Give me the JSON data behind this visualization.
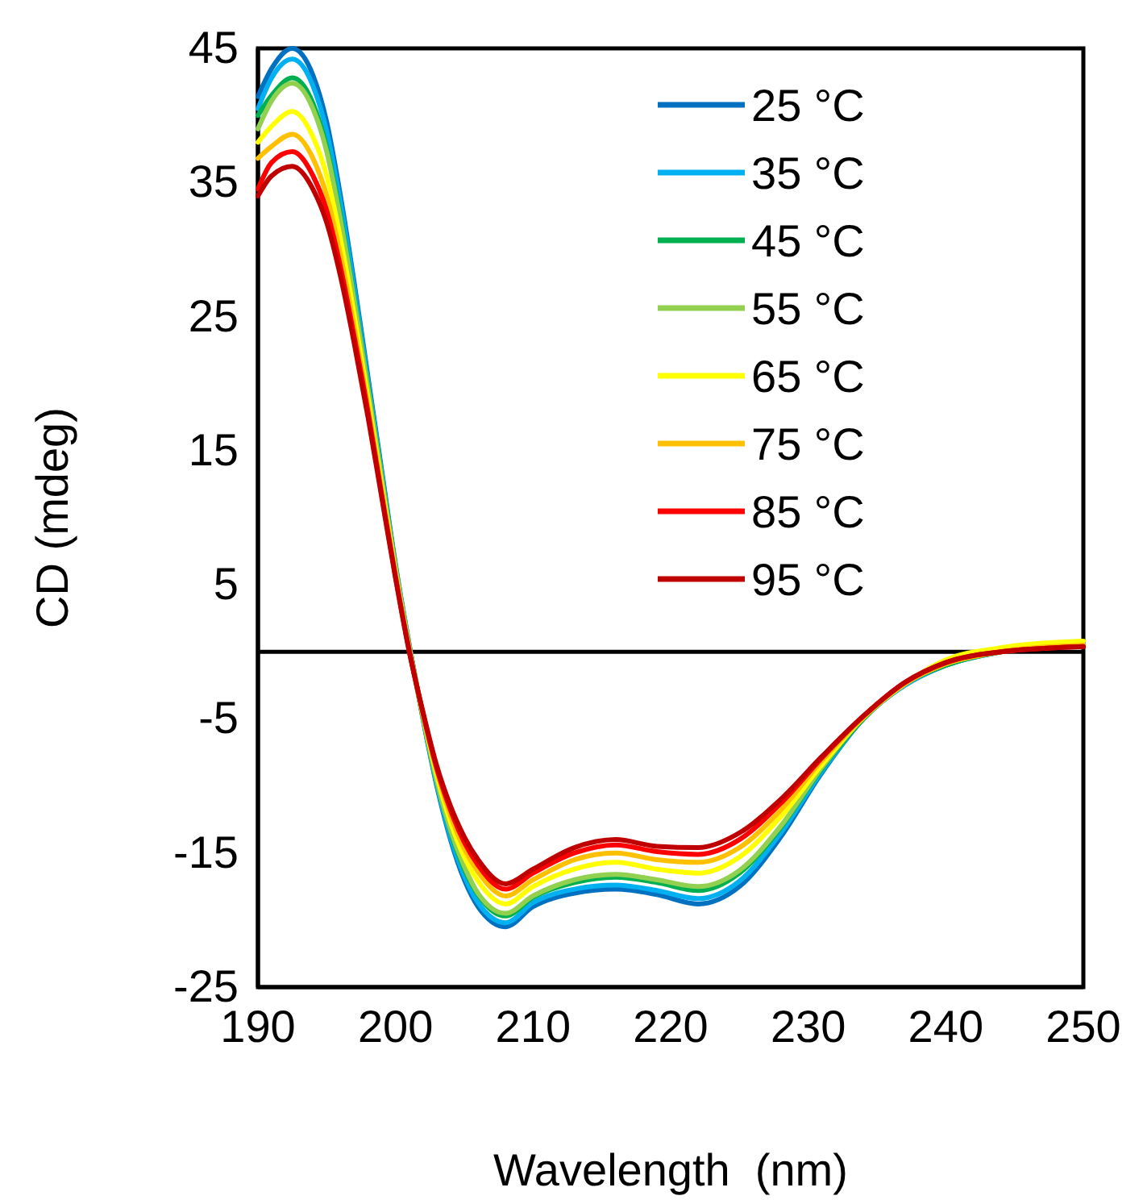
{
  "chart_data": {
    "type": "line",
    "xlabel": "Wavelength  (nm)",
    "ylabel": "CD (mdeg)",
    "x": [
      190,
      191,
      192.5,
      194,
      195,
      196,
      197,
      198,
      199,
      200,
      201,
      202,
      203,
      204,
      205,
      206,
      208,
      210,
      213,
      216,
      219,
      222,
      225,
      228,
      231,
      234,
      237,
      240,
      244,
      250
    ],
    "xlim": [
      190,
      250
    ],
    "xticks": [
      190,
      200,
      210,
      220,
      230,
      240,
      250
    ],
    "ylim": [
      -25,
      45
    ],
    "yticks": [
      -25,
      -15,
      -5,
      5,
      15,
      25,
      35,
      45
    ],
    "grid": false,
    "legend": "top right",
    "marker": "none",
    "line_style": "solid",
    "series": [
      {
        "name": "25 °C",
        "color": "#0070c0",
        "values": [
          41.4,
          43.5,
          45,
          43,
          39.5,
          34,
          27.5,
          20.5,
          13.5,
          6.5,
          0.5,
          -5,
          -10,
          -14,
          -17,
          -19,
          -20.5,
          -19,
          -18,
          -17.7,
          -18.1,
          -18.8,
          -17.5,
          -13.8,
          -9,
          -5,
          -2.5,
          -1,
          0,
          0.6
        ]
      },
      {
        "name": "35 °C",
        "color": "#00b0f0",
        "values": [
          40.5,
          42.8,
          44.2,
          42.2,
          38.8,
          33.5,
          27.1,
          20.2,
          13.3,
          6.4,
          0.5,
          -5,
          -9.9,
          -13.8,
          -16.7,
          -18.7,
          -20.2,
          -18.7,
          -17.7,
          -17.4,
          -17.8,
          -18.4,
          -17.1,
          -13.5,
          -8.9,
          -5,
          -2.5,
          -1,
          0,
          0.6
        ]
      },
      {
        "name": "45 °C",
        "color": "#00b050",
        "values": [
          40,
          41.5,
          42.8,
          40.9,
          37.6,
          32.5,
          26.4,
          19.8,
          13,
          6.3,
          0.4,
          -4.9,
          -9.6,
          -13.4,
          -16.2,
          -18.1,
          -19.7,
          -18.3,
          -17.2,
          -16.8,
          -17.2,
          -17.8,
          -16.5,
          -13.1,
          -8.7,
          -5,
          -2.4,
          -1,
          0,
          0.5
        ]
      },
      {
        "name": "55 °C",
        "color": "#92d050",
        "values": [
          39,
          41.1,
          42.4,
          40.5,
          37.3,
          32.2,
          26.2,
          19.6,
          12.9,
          6.2,
          0.4,
          -4.9,
          -9.6,
          -13.3,
          -16,
          -18,
          -19.5,
          -18.2,
          -17,
          -16.6,
          -17,
          -17.5,
          -16.3,
          -13,
          -8.6,
          -4.9,
          -2.4,
          -0.9,
          0,
          0.5
        ]
      },
      {
        "name": "65 °C",
        "color": "#ffff00",
        "values": [
          38,
          39.2,
          40.3,
          38.4,
          35.5,
          30.8,
          25.1,
          18.9,
          12.4,
          6,
          0.2,
          -4.7,
          -9.2,
          -12.7,
          -15.3,
          -17.1,
          -18.8,
          -17.5,
          -16.2,
          -15.7,
          -16.2,
          -16.5,
          -15.3,
          -12.3,
          -8.4,
          -4.9,
          -2.4,
          -0.6,
          0.3,
          0.8
        ]
      },
      {
        "name": "75 °C",
        "color": "#ffc000",
        "values": [
          36.8,
          37.7,
          38.6,
          36.8,
          34,
          29.6,
          24.2,
          18.3,
          12,
          5.8,
          0.1,
          -4.6,
          -8.9,
          -12.2,
          -14.7,
          -16.4,
          -18.2,
          -17,
          -15.5,
          -15,
          -15.5,
          -15.7,
          -14.6,
          -11.8,
          -8.1,
          -4.9,
          -2.4,
          -0.9,
          0,
          0.5
        ]
      },
      {
        "name": "85 °C",
        "color": "#ff0000",
        "values": [
          34.5,
          36.5,
          37.3,
          35.5,
          32.9,
          28.7,
          23.5,
          17.9,
          11.7,
          5.6,
          0.1,
          -4.6,
          -8.7,
          -11.8,
          -14.2,
          -15.9,
          -17.7,
          -16.5,
          -15,
          -14.4,
          -14.9,
          -15.1,
          -14,
          -11.3,
          -7.9,
          -4.8,
          -2.3,
          -0.8,
          0,
          0.4
        ]
      },
      {
        "name": "95 °C",
        "color": "#c00000",
        "values": [
          34,
          35.5,
          36.2,
          34.5,
          32,
          28,
          23,
          17.5,
          11.5,
          5.5,
          0,
          -4.5,
          -8.5,
          -11.5,
          -13.8,
          -15.5,
          -17.3,
          -16.2,
          -14.6,
          -14,
          -14.5,
          -14.6,
          -13.5,
          -11,
          -7.8,
          -4.8,
          -2.3,
          -0.8,
          0,
          0.4
        ]
      }
    ]
  }
}
